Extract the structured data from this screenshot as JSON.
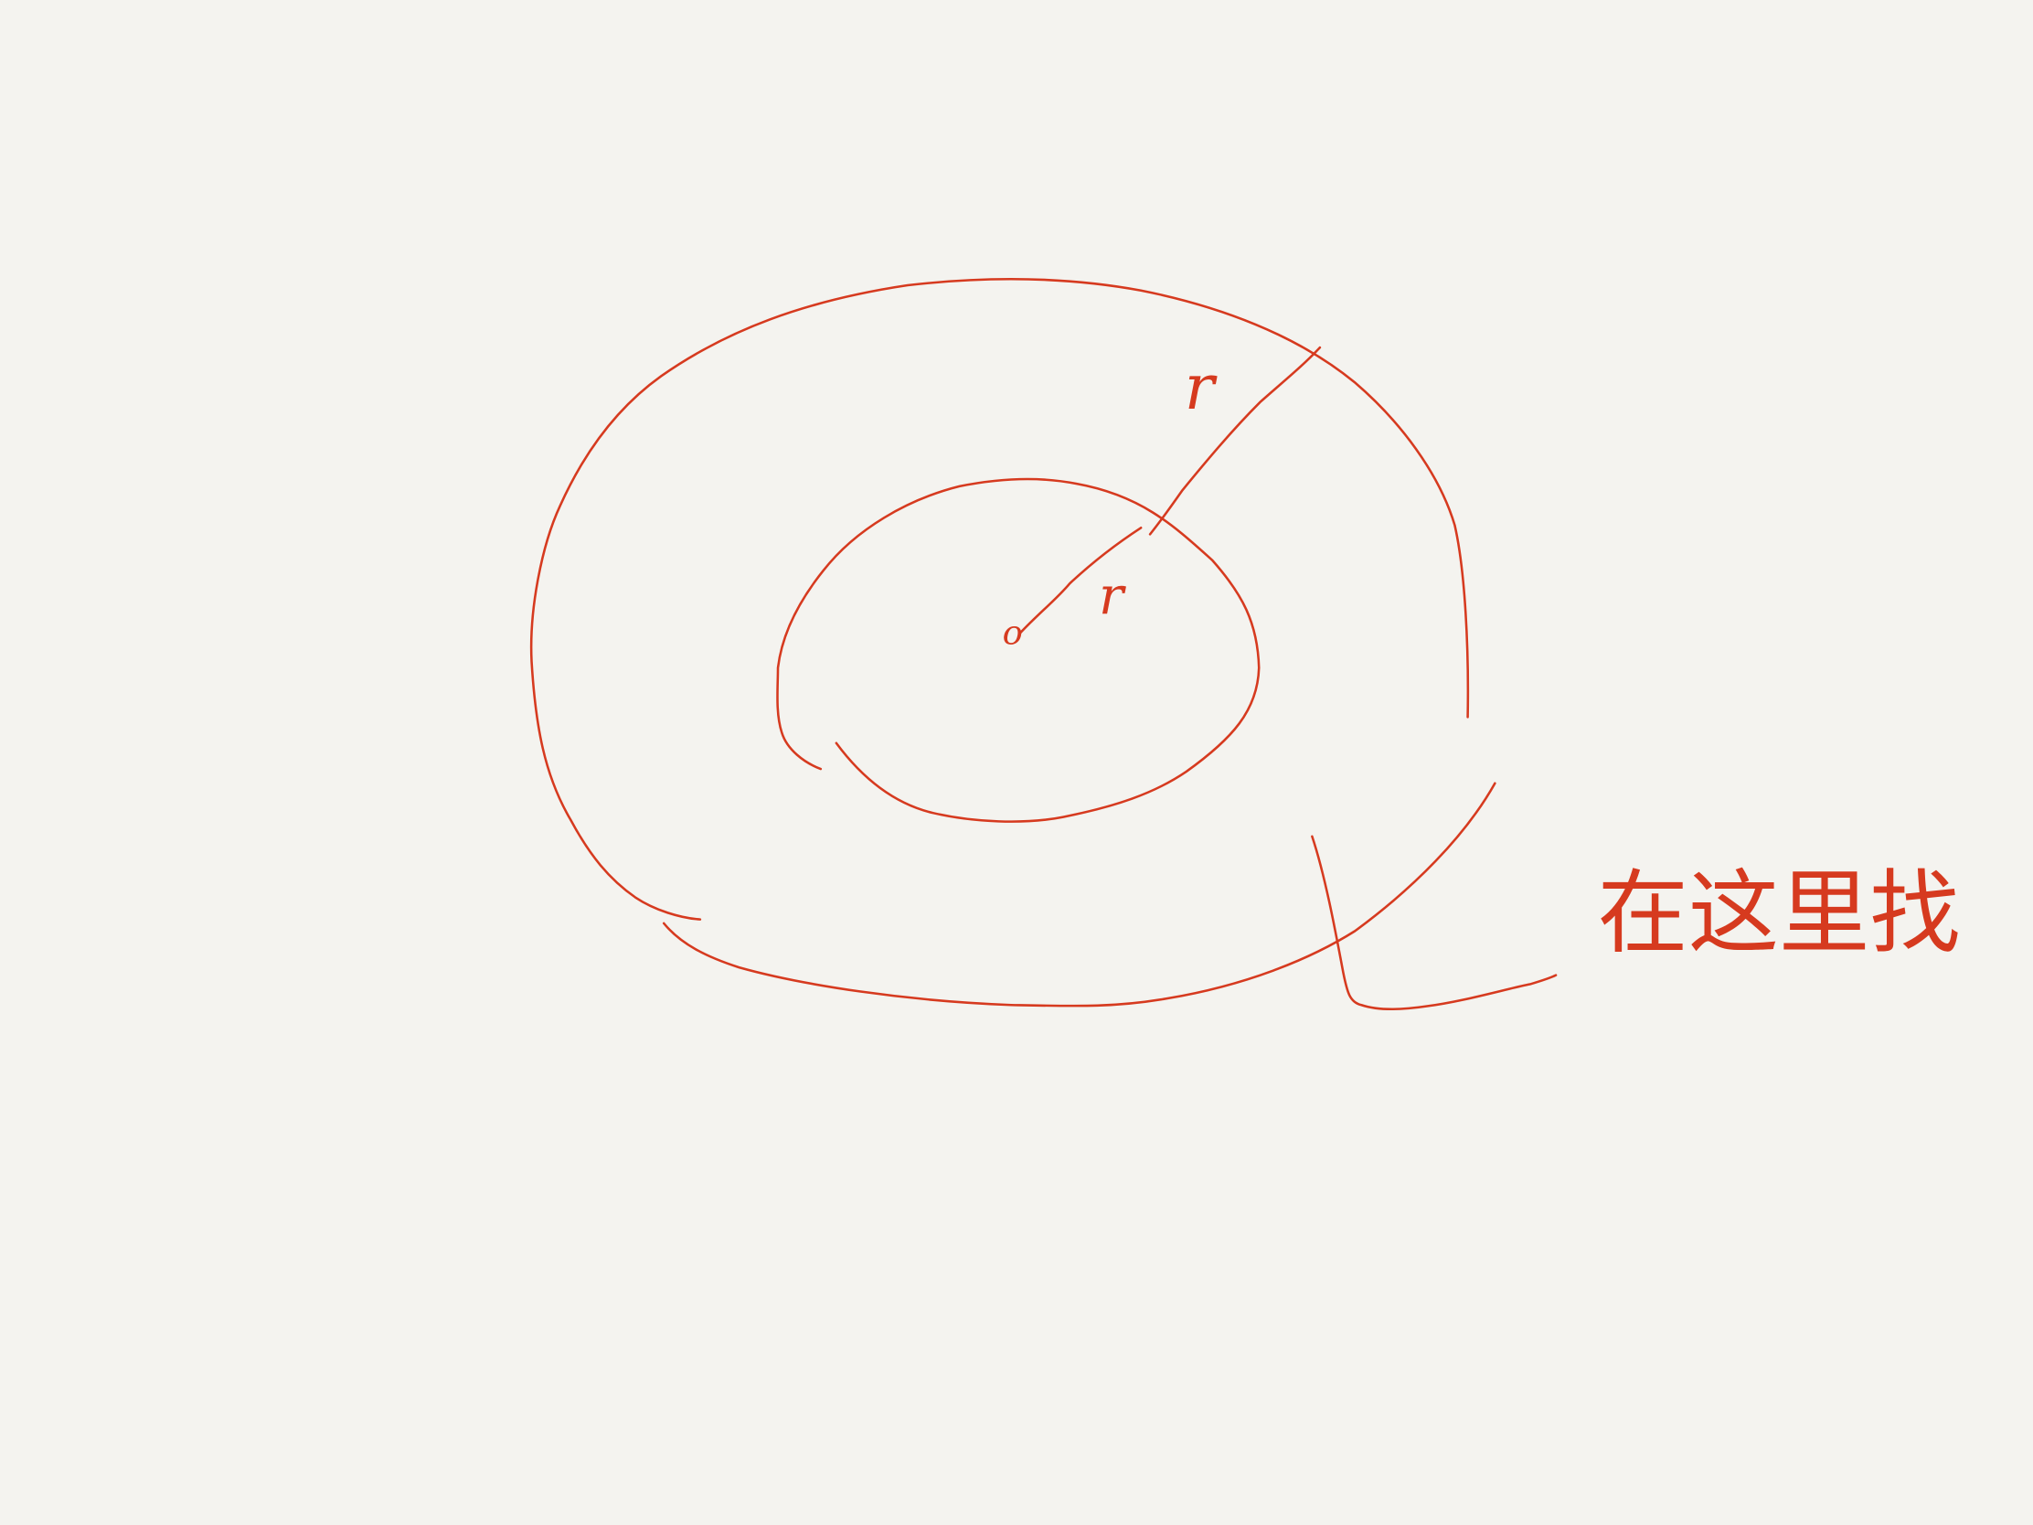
{
  "labels": {
    "center": "o",
    "inner_radius": "r",
    "outer_radius": "r"
  },
  "annotation": "在这里找"
}
